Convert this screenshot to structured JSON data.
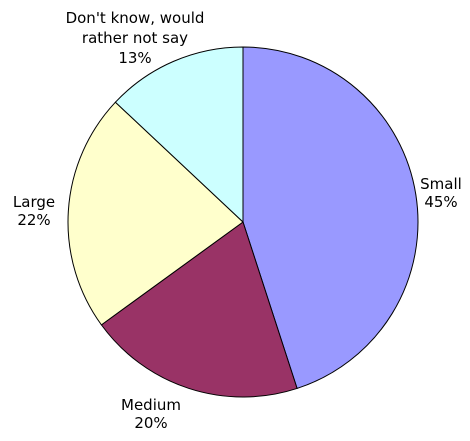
{
  "chart_data": {
    "type": "pie",
    "title": "",
    "start_angle_deg": 0,
    "direction": "clockwise",
    "slices": [
      {
        "label": "Small",
        "value": 45,
        "value_label": "45%",
        "color": "#9999ff"
      },
      {
        "label": "Medium",
        "value": 20,
        "value_label": "20%",
        "color": "#993366"
      },
      {
        "label": "Large",
        "value": 22,
        "value_label": "22%",
        "color": "#ffffcc"
      },
      {
        "label_lines": [
          "Don't know, would",
          "rather not say"
        ],
        "value": 13,
        "value_label": "13%",
        "color": "#ccffff"
      }
    ],
    "stroke_color": "#000000",
    "legend": "none"
  }
}
